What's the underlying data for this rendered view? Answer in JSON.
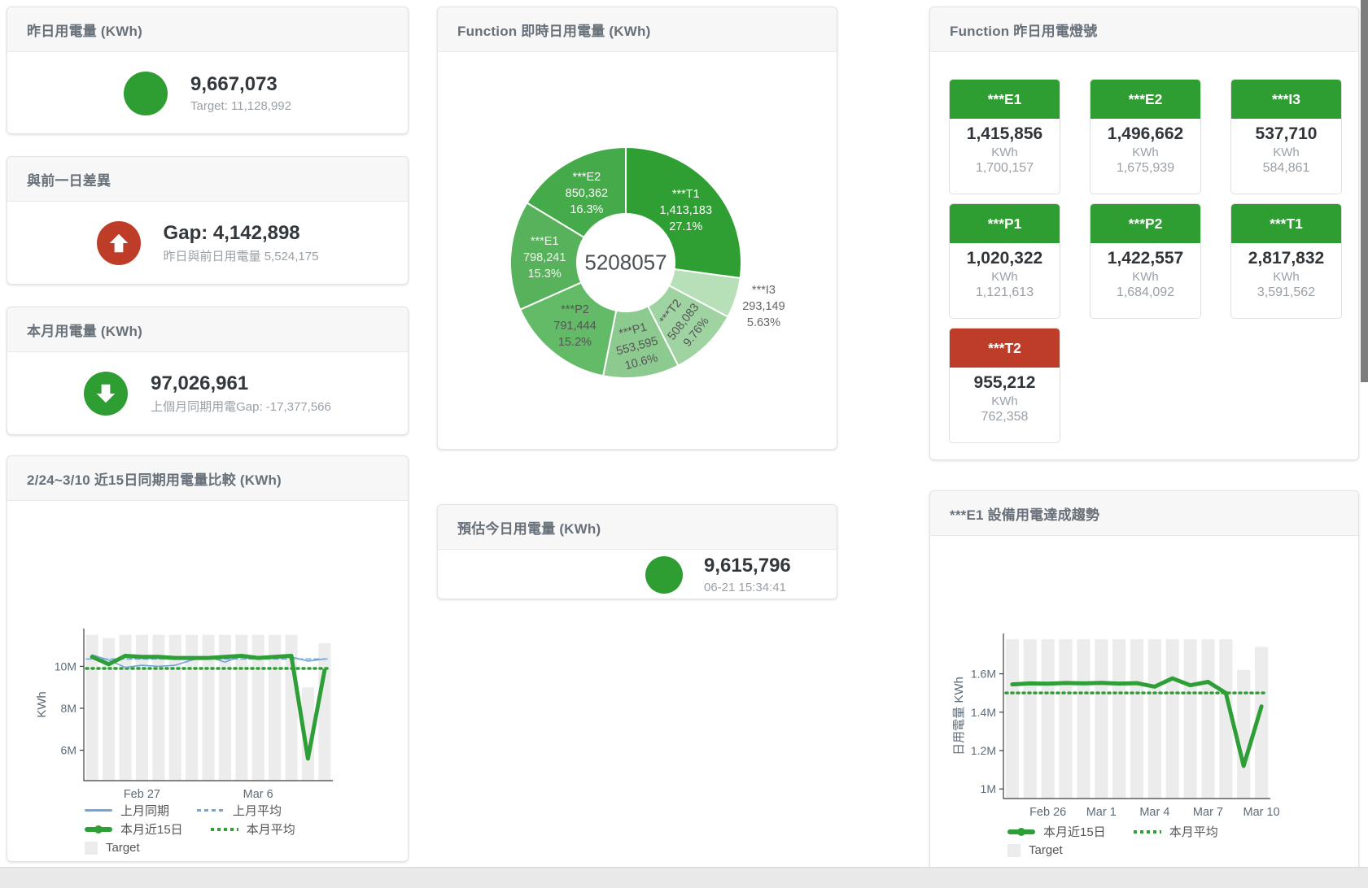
{
  "colors": {
    "green": "#2e9d32",
    "red": "#bd3d28",
    "blue_line": "#74a5d4",
    "bar_gray": "#ececec",
    "value_dark": "#33383d",
    "muted": "#9aa0a6"
  },
  "cards": {
    "yesterday": {
      "title": "昨日用電量 (KWh)",
      "value": "9,667,073",
      "subtitle": "Target: 11,128,992",
      "indicator": "green-circle"
    },
    "day_gap": {
      "title": "與前一日差異",
      "value": "Gap: 4,142,898",
      "subtitle": "昨日與前日用電量 5,524,175",
      "indicator": "red-up-arrow"
    },
    "month": {
      "title": "本月用電量 (KWh)",
      "value": "97,026,961",
      "subtitle": "上個月同期用電Gap: -17,377,566",
      "indicator": "green-down-arrow"
    },
    "estimate": {
      "title": "預估今日用電量 (KWh)",
      "value": "9,615,796",
      "subtitle": "06-21 15:34:41",
      "indicator": "green-circle"
    }
  },
  "lights": {
    "title": "Function 昨日用電燈號",
    "unit": "KWh",
    "tiles": [
      {
        "name": "***E1",
        "value": "1,415,856",
        "target": "1,700,157",
        "status": "green"
      },
      {
        "name": "***E2",
        "value": "1,496,662",
        "target": "1,675,939",
        "status": "green"
      },
      {
        "name": "***I3",
        "value": "537,710",
        "target": "584,861",
        "status": "green"
      },
      {
        "name": "***P1",
        "value": "1,020,322",
        "target": "1,121,613",
        "status": "green"
      },
      {
        "name": "***P2",
        "value": "1,422,557",
        "target": "1,684,092",
        "status": "green"
      },
      {
        "name": "***T1",
        "value": "2,817,832",
        "target": "3,591,562",
        "status": "green"
      },
      {
        "name": "***T2",
        "value": "955,212",
        "target": "762,358",
        "status": "red"
      }
    ]
  },
  "chart_data": [
    {
      "id": "realtime_donut",
      "type": "pie",
      "title": "Function 即時日用電量 (KWh)",
      "center_total": "5208057",
      "legend_position": "none",
      "start_angle_deg": 0,
      "clockwise": true,
      "slices": [
        {
          "name": "***T1",
          "value": "1,413,183",
          "pct": "27.1%",
          "raw": 1413183,
          "color": "#2f9e33",
          "label_color": "#ffffff",
          "label_r": 98,
          "label_rotate": 0
        },
        {
          "name": "***I3",
          "value": "293,149",
          "pct": "5.63%",
          "raw": 293149,
          "color": "#b7e0b9",
          "label_color": "#666666",
          "label_r": 178,
          "label_rotate": 0
        },
        {
          "name": "***T2",
          "value": "508,083",
          "pct": "9.76%",
          "raw": 508083,
          "color": "#9fd4a2",
          "label_color": "#555555",
          "label_r": 102,
          "label_rotate": -52
        },
        {
          "name": "***P1",
          "value": "553,595",
          "pct": "10.6%",
          "raw": 553595,
          "color": "#8cca8f",
          "label_color": "#555555",
          "label_r": 104,
          "label_rotate": -15
        },
        {
          "name": "***P2",
          "value": "791,444",
          "pct": "15.2%",
          "raw": 791444,
          "color": "#63ba67",
          "label_color": "#555555",
          "label_r": 100,
          "label_rotate": 0
        },
        {
          "name": "***E1",
          "value": "798,241",
          "pct": "15.3%",
          "raw": 798241,
          "color": "#57b25b",
          "label_color": "#f2f5f2",
          "label_r": 100,
          "label_rotate": 0
        },
        {
          "name": "***E2",
          "value": "850,362",
          "pct": "16.3%",
          "raw": 850362,
          "color": "#45aa4a",
          "label_color": "#ffffff",
          "label_r": 98,
          "label_rotate": 0
        }
      ]
    },
    {
      "id": "compare",
      "type": "line+bar",
      "title": "2/24~3/10 近15日同期用電量比較 (KWh)",
      "ylabel": "KWh",
      "unit": "M KWh",
      "n": 15,
      "ylim": [
        4.55,
        11.8
      ],
      "grid": false,
      "yticks": [
        {
          "v": 6,
          "label": "6M"
        },
        {
          "v": 8,
          "label": "8M"
        },
        {
          "v": 10,
          "label": "10M"
        }
      ],
      "xticks": [
        {
          "i": 3,
          "label": "Feb 27"
        },
        {
          "i": 10,
          "label": "Mar 6"
        }
      ],
      "series": [
        {
          "name": "Target",
          "type": "bar",
          "color": "#ececec",
          "values": [
            11.5,
            11.35,
            11.5,
            11.5,
            11.5,
            11.5,
            11.5,
            11.5,
            11.5,
            11.5,
            11.5,
            11.5,
            11.5,
            9.0,
            11.1
          ]
        },
        {
          "name": "上月平均",
          "type": "avg",
          "dash": "6 4",
          "width": 1.6,
          "color": "#74a5d4",
          "value": 10.35
        },
        {
          "name": "本月平均",
          "type": "avg",
          "dash": "2 5",
          "width": 3.5,
          "color": "#2e9e36",
          "value": 9.9
        },
        {
          "name": "上月同期",
          "type": "line",
          "width": 1.6,
          "color": "#74a5d4",
          "values": [
            10.55,
            10.3,
            9.95,
            10.05,
            10.0,
            10.05,
            10.3,
            10.45,
            10.2,
            10.5,
            10.45,
            10.5,
            10.45,
            10.25,
            10.35
          ]
        },
        {
          "name": "本月近15日",
          "type": "line",
          "width": 5,
          "color": "#2e9e36",
          "values": [
            10.45,
            10.1,
            10.5,
            10.45,
            10.45,
            10.4,
            10.4,
            10.4,
            10.45,
            10.5,
            10.4,
            10.45,
            10.5,
            5.6,
            9.8
          ]
        }
      ],
      "legend_rows": [
        [
          {
            "label": "上月同期",
            "swatch": "line-blue"
          },
          {
            "label": "上月平均",
            "swatch": "dash-blue"
          }
        ],
        [
          {
            "label": "本月近15日",
            "swatch": "thick-green"
          },
          {
            "label": "本月平均",
            "swatch": "dots-green"
          }
        ],
        [
          {
            "label": "Target",
            "swatch": "box-gray"
          }
        ]
      ]
    },
    {
      "id": "trend",
      "type": "line+bar",
      "title": "***E1 設備用電達成趨勢",
      "ylabel": "日用電量 KWh",
      "unit": "M KWh",
      "n": 15,
      "ylim": [
        0.95,
        1.81
      ],
      "grid": false,
      "yticks": [
        {
          "v": 1,
          "label": "1M"
        },
        {
          "v": 1.2,
          "label": "1.2M"
        },
        {
          "v": 1.4,
          "label": "1.4M"
        },
        {
          "v": 1.6,
          "label": "1.6M"
        }
      ],
      "xticks": [
        {
          "i": 2,
          "label": "Feb 26"
        },
        {
          "i": 5,
          "label": "Mar 1"
        },
        {
          "i": 8,
          "label": "Mar 4"
        },
        {
          "i": 11,
          "label": "Mar 7"
        },
        {
          "i": 14,
          "label": "Mar 10"
        }
      ],
      "series": [
        {
          "name": "Target",
          "type": "bar",
          "color": "#ececec",
          "values": [
            1.78,
            1.78,
            1.78,
            1.78,
            1.78,
            1.78,
            1.78,
            1.78,
            1.78,
            1.78,
            1.78,
            1.78,
            1.78,
            1.62,
            1.74
          ]
        },
        {
          "name": "本月平均",
          "type": "avg",
          "dash": "2 5",
          "width": 3.5,
          "color": "#2e9e36",
          "value": 1.5
        },
        {
          "name": "本月近15日",
          "type": "line",
          "width": 5,
          "color": "#2e9e36",
          "values": [
            1.545,
            1.55,
            1.548,
            1.552,
            1.55,
            1.553,
            1.549,
            1.551,
            1.533,
            1.576,
            1.54,
            1.558,
            1.5,
            1.12,
            1.43
          ]
        }
      ],
      "legend_rows": [
        [
          {
            "label": "本月近15日",
            "swatch": "thick-green"
          },
          {
            "label": "本月平均",
            "swatch": "dots-green"
          }
        ],
        [
          {
            "label": "Target",
            "swatch": "box-gray"
          }
        ]
      ]
    }
  ]
}
